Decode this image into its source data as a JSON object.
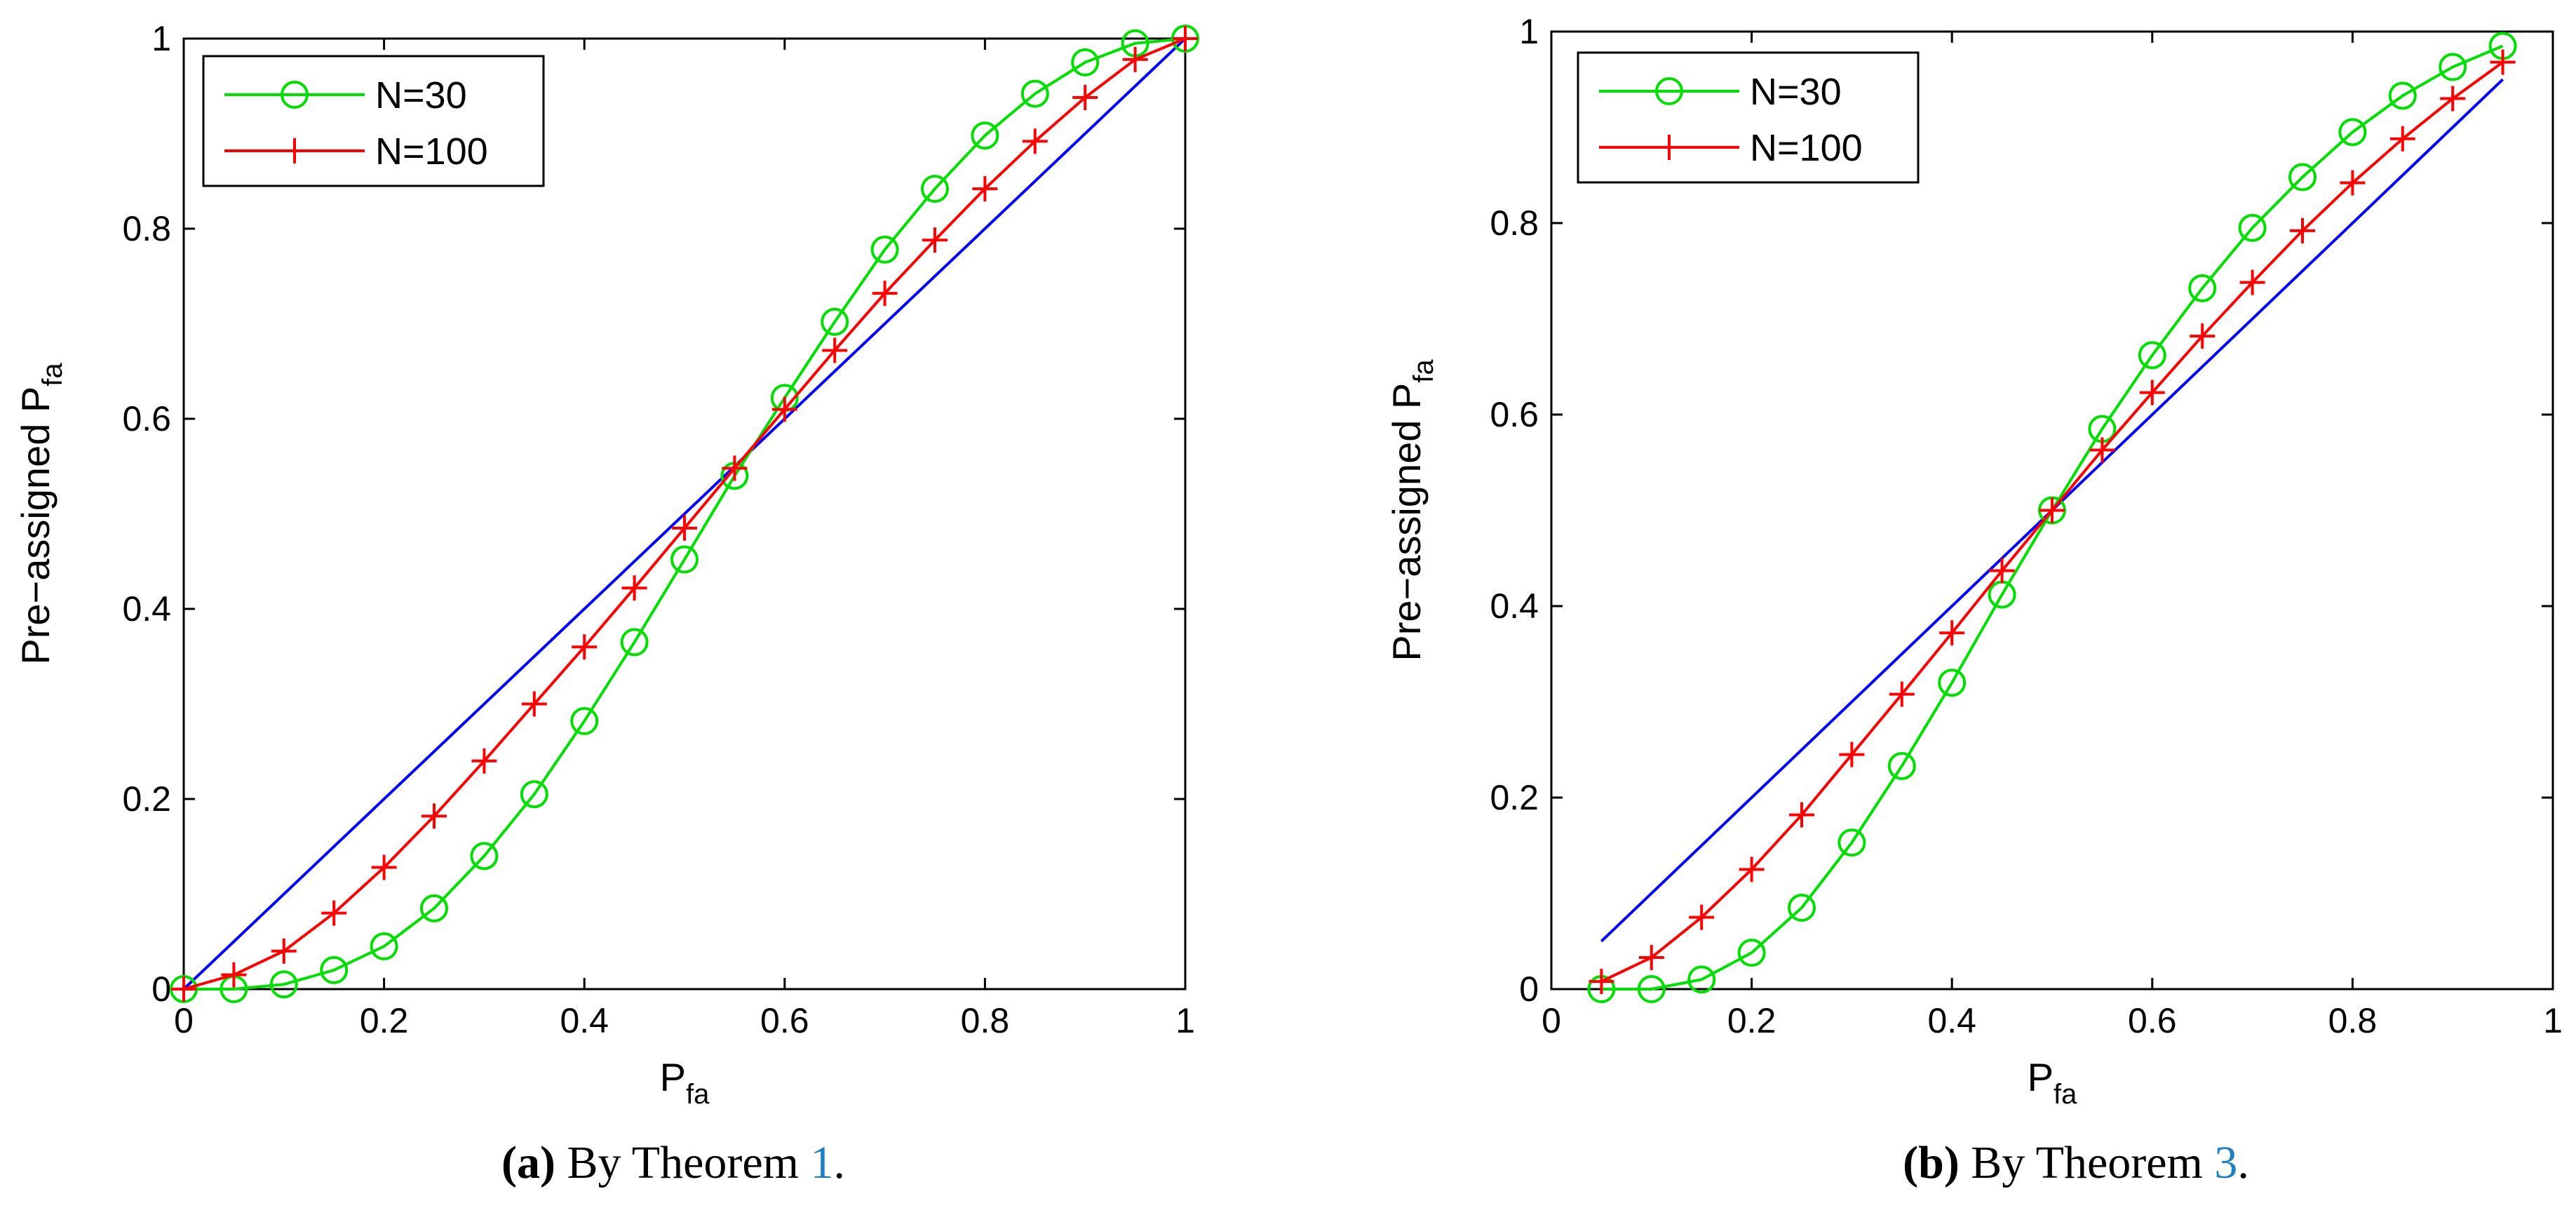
{
  "colors": {
    "n30": "#00e000",
    "n100": "#ff0000",
    "reference": "#0000ff",
    "caption_ref": "#1f7fc2"
  },
  "chart_data": [
    {
      "type": "line",
      "xlabel_main": "P",
      "xlabel_sub": "fa",
      "ylabel_main": "Pre−assigned P",
      "ylabel_sub": "fa",
      "xlim": [
        0,
        1
      ],
      "ylim": [
        0,
        1
      ],
      "xticks": [
        0,
        0.2,
        0.4,
        0.6,
        0.8,
        1
      ],
      "yticks": [
        0,
        0.2,
        0.4,
        0.6,
        0.8,
        1
      ],
      "xtick_labels": [
        "0",
        "0.2",
        "0.4",
        "0.6",
        "0.8",
        "1"
      ],
      "ytick_labels": [
        "0",
        "0.2",
        "0.4",
        "0.6",
        "0.8",
        "1"
      ],
      "legend_position": "top-left",
      "x": [
        0,
        0.05,
        0.1,
        0.15,
        0.2,
        0.25,
        0.3,
        0.35,
        0.4,
        0.45,
        0.5,
        0.55,
        0.6,
        0.65,
        0.7,
        0.75,
        0.8,
        0.85,
        0.9,
        0.95,
        1.0
      ],
      "series": [
        {
          "name": "N=30",
          "marker": "circle",
          "color_key": "n30",
          "values": [
            0,
            0,
            0.005,
            0.02,
            0.045,
            0.085,
            0.14,
            0.205,
            0.282,
            0.365,
            0.452,
            0.54,
            0.622,
            0.702,
            0.778,
            0.842,
            0.898,
            0.942,
            0.975,
            0.995,
            1.0
          ]
        },
        {
          "name": "N=100",
          "marker": "plus",
          "color_key": "n100",
          "values": [
            0,
            0.015,
            0.04,
            0.08,
            0.128,
            0.182,
            0.24,
            0.3,
            0.36,
            0.422,
            0.485,
            0.548,
            0.61,
            0.672,
            0.732,
            0.788,
            0.842,
            0.892,
            0.938,
            0.978,
            1.0
          ]
        }
      ],
      "reference_line": {
        "from": [
          0,
          0
        ],
        "to": [
          1,
          1
        ]
      },
      "caption": {
        "letter": "(a)",
        "text": " By Theorem ",
        "ref": "1",
        "end": "."
      }
    },
    {
      "type": "line",
      "xlabel_main": "P",
      "xlabel_sub": "fa",
      "ylabel_main": "Pre−assigned P",
      "ylabel_sub": "fa",
      "xlim": [
        0,
        1
      ],
      "ylim": [
        0,
        1
      ],
      "xticks": [
        0,
        0.2,
        0.4,
        0.6,
        0.8,
        1
      ],
      "yticks": [
        0,
        0.2,
        0.4,
        0.6,
        0.8,
        1
      ],
      "xtick_labels": [
        "0",
        "0.2",
        "0.4",
        "0.6",
        "0.8",
        "1"
      ],
      "ytick_labels": [
        "0",
        "0.2",
        "0.4",
        "0.6",
        "0.8",
        "1"
      ],
      "legend_position": "top-left",
      "x": [
        0.05,
        0.1,
        0.15,
        0.2,
        0.25,
        0.3,
        0.35,
        0.4,
        0.45,
        0.5,
        0.55,
        0.6,
        0.65,
        0.7,
        0.75,
        0.8,
        0.85,
        0.9,
        0.95
      ],
      "series": [
        {
          "name": "N=30",
          "marker": "circle",
          "color_key": "n30",
          "values": [
            0,
            0,
            0.01,
            0.038,
            0.085,
            0.153,
            0.233,
            0.32,
            0.412,
            0.5,
            0.585,
            0.662,
            0.732,
            0.795,
            0.848,
            0.895,
            0.933,
            0.963,
            0.985
          ]
        },
        {
          "name": "N=100",
          "marker": "plus",
          "color_key": "n100",
          "values": [
            0.008,
            0.033,
            0.075,
            0.125,
            0.182,
            0.245,
            0.308,
            0.372,
            0.437,
            0.5,
            0.563,
            0.623,
            0.682,
            0.738,
            0.792,
            0.842,
            0.888,
            0.93,
            0.968
          ]
        }
      ],
      "reference_line": {
        "from": [
          0.05,
          0.05
        ],
        "to": [
          0.95,
          0.95
        ]
      },
      "caption": {
        "letter": "(b)",
        "text": " By Theorem ",
        "ref": "3",
        "end": "."
      }
    }
  ]
}
